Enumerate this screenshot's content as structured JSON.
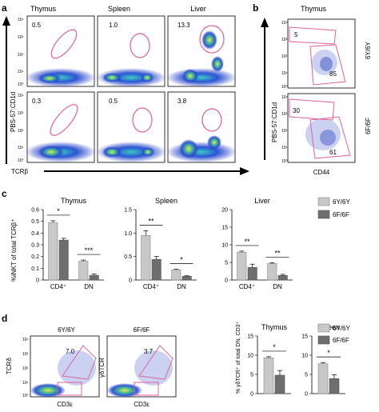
{
  "panel_letters": [
    "a",
    "b",
    "c",
    "d"
  ],
  "panel_a": {
    "columns": [
      "Thymus",
      "Spleen",
      "Liver"
    ],
    "ylabel": "PBS-57:CD1d",
    "xlabel": "TCRβ",
    "row1_pct": [
      "0.5",
      "1.0",
      "13.3"
    ],
    "row2_pct": [
      "0.3",
      "0.5",
      "3.8"
    ],
    "ticks": [
      "10⁴",
      "10³",
      "10²",
      "10¹",
      "10⁰"
    ]
  },
  "panel_b": {
    "title": "Thymus",
    "ylabel": "PBS-57:CD1d",
    "xlabel": "CD44",
    "row1": {
      "top": "5",
      "bottom": "85",
      "genotype": "6Y/6Y"
    },
    "row2": {
      "top": "30",
      "bottom": "61",
      "genotype": "6F/6F"
    }
  },
  "panel_c": {
    "ylabel": "%iNKT of total TCRβ⁺",
    "legend": [
      "6Y/6Y",
      "6F/6F"
    ],
    "colors": {
      "6Y/6Y": "#c8c8c8",
      "6F/6F": "#6e6e6e"
    },
    "charts": [
      {
        "title": "Thymus",
        "categories": [
          "CD4⁺",
          "DN"
        ],
        "ylim": [
          0,
          0.6
        ],
        "yticks": [
          "0",
          "0.1",
          "0.2",
          "0.3",
          "0.4",
          "0.5",
          "0.6"
        ],
        "series": [
          {
            "name": "6Y/6Y",
            "values": [
              0.49,
              0.16
            ],
            "err": [
              0.015,
              0.01
            ]
          },
          {
            "name": "6F/6F",
            "values": [
              0.34,
              0.04
            ],
            "err": [
              0.015,
              0.01
            ]
          }
        ],
        "sig": [
          "*",
          "***"
        ]
      },
      {
        "title": "Spleen",
        "categories": [
          "CD4⁺",
          "DN"
        ],
        "ylim": [
          0,
          1.5
        ],
        "yticks": [
          "0",
          "0.5",
          "1.0",
          "1.5"
        ],
        "series": [
          {
            "name": "6Y/6Y",
            "values": [
              0.95,
              0.22
            ],
            "err": [
              0.1,
              0.01
            ]
          },
          {
            "name": "6F/6F",
            "values": [
              0.44,
              0.08
            ],
            "err": [
              0.06,
              0.01
            ]
          }
        ],
        "sig": [
          "**",
          "*"
        ]
      },
      {
        "title": "Liver",
        "categories": [
          "CD4⁺",
          "DN"
        ],
        "ylim": [
          0,
          20
        ],
        "yticks": [
          "0",
          "5",
          "10",
          "15",
          "20"
        ],
        "series": [
          {
            "name": "6Y/6Y",
            "values": [
              7.9,
              4.7
            ],
            "err": [
              0.3,
              0.2
            ]
          },
          {
            "name": "6F/6F",
            "values": [
              3.6,
              1.3
            ],
            "err": [
              0.9,
              0.3
            ]
          }
        ],
        "sig": [
          "**",
          "**"
        ]
      }
    ]
  },
  "panel_d": {
    "plots": [
      {
        "genotype": "6Y/6Y",
        "ylabel": "TCRδ",
        "xlabel": "CD3ε",
        "pct": "7.0"
      },
      {
        "genotype": "6F/6F",
        "ylabel": "γδTCR",
        "xlabel": "CD3ε",
        "pct": "3.7"
      }
    ],
    "ylabel": "% γδTCR⁺ of total DN, CD3⁺",
    "legend": [
      "6Y/6Y",
      "6F/6F"
    ],
    "charts": [
      {
        "title": "Thymus",
        "ylim": [
          0,
          15
        ],
        "yticks": [
          "0",
          "5",
          "10",
          "15"
        ],
        "series": [
          {
            "name": "6Y/6Y",
            "values": [
              9.3
            ],
            "err": [
              0.3
            ]
          },
          {
            "name": "6F/6F",
            "values": [
              4.8
            ],
            "err": [
              1.2
            ]
          }
        ],
        "sig": "*"
      },
      {
        "title": "Spleen",
        "ylim": [
          0,
          15
        ],
        "yticks": [
          "0",
          "5",
          "10",
          "15"
        ],
        "series": [
          {
            "name": "6Y/6Y",
            "values": [
              7.8
            ],
            "err": [
              0.3
            ]
          },
          {
            "name": "6F/6F",
            "values": [
              3.9
            ],
            "err": [
              1.0
            ]
          }
        ],
        "sig": "*"
      }
    ]
  }
}
